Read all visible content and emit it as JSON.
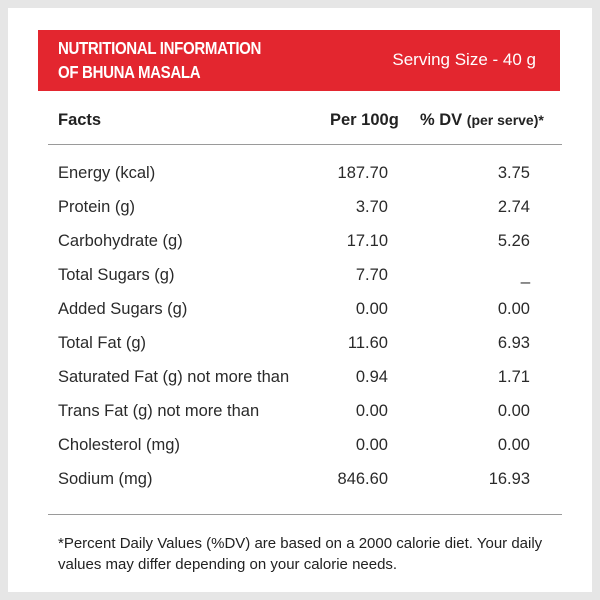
{
  "header": {
    "title_line1": "NUTRITIONAL INFORMATION",
    "title_line2": "OF BHUNA MASALA",
    "serving_size": "Serving Size - 40 g",
    "color": "#e3262f"
  },
  "table": {
    "columns": {
      "facts": "Facts",
      "per100": "Per 100g",
      "dv_main": "% DV",
      "dv_sub": "(per serve)*"
    },
    "rows": [
      {
        "name": "Energy (kcal)",
        "per100": "187.70",
        "dv": "3.75"
      },
      {
        "name": "Protein (g)",
        "per100": "3.70",
        "dv": "2.74"
      },
      {
        "name": "Carbohydrate (g)",
        "per100": "17.10",
        "dv": "5.26"
      },
      {
        "name": "Total Sugars (g)",
        "per100": "7.70",
        "dv": "_"
      },
      {
        "name": "Added Sugars (g)",
        "per100": "0.00",
        "dv": "0.00"
      },
      {
        "name": "Total Fat (g)",
        "per100": "11.60",
        "dv": "6.93"
      },
      {
        "name": "Saturated Fat (g) not more than",
        "per100": "0.94",
        "dv": "1.71"
      },
      {
        "name": "Trans Fat (g) not more than",
        "per100": "0.00",
        "dv": "0.00"
      },
      {
        "name": "Cholesterol (mg)",
        "per100": "0.00",
        "dv": "0.00"
      },
      {
        "name": "Sodium (mg)",
        "per100": "846.60",
        "dv": "16.93"
      }
    ]
  },
  "footnote": "*Percent Daily Values (%DV) are based on a 2000 calorie diet. Your daily values may differ depending on your calorie needs."
}
